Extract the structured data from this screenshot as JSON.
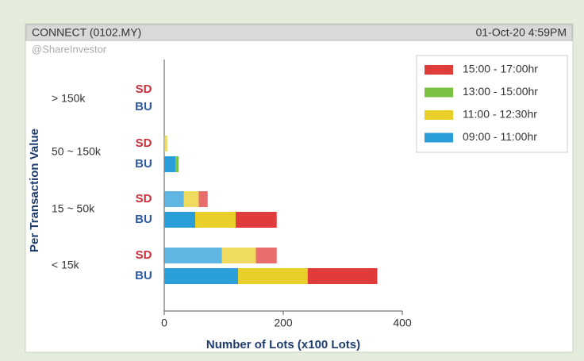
{
  "header": {
    "title": "CONNECT (0102.MY)",
    "date": "01-Oct-20 4:59PM",
    "watermark": "@ShareInvestor"
  },
  "chart_data": {
    "type": "stacked-barh",
    "xlabel": "Number of Lots (x100 Lots)",
    "ylabel": "Per Transaction Value",
    "groups": [
      "> 150k",
      "50 ~ 150k",
      "15 ~ 50k",
      "< 15k"
    ],
    "subgroups": [
      "SD",
      "BU"
    ],
    "series": [
      {
        "name": "15:00 - 17:00hr",
        "color": "#e03c3c",
        "values": [
          0,
          0,
          0,
          0,
          15,
          69,
          35,
          117
        ]
      },
      {
        "name": "13:00 - 15:00hr",
        "color": "#7cc242",
        "values": [
          0,
          0,
          0,
          5,
          0,
          0,
          0,
          0
        ]
      },
      {
        "name": "11:00 - 12:30hr",
        "color": "#e8cf2a",
        "values": [
          0,
          0,
          5,
          0,
          25,
          68,
          57,
          117
        ]
      },
      {
        "name": "09:00 - 11:00hr",
        "color": "#2a9ed8",
        "values": [
          0,
          0,
          0,
          19,
          33,
          52,
          97,
          124
        ]
      }
    ],
    "xlim": [
      0,
      400
    ],
    "xticks": [
      0,
      200,
      400
    ],
    "legend": "upper right"
  }
}
